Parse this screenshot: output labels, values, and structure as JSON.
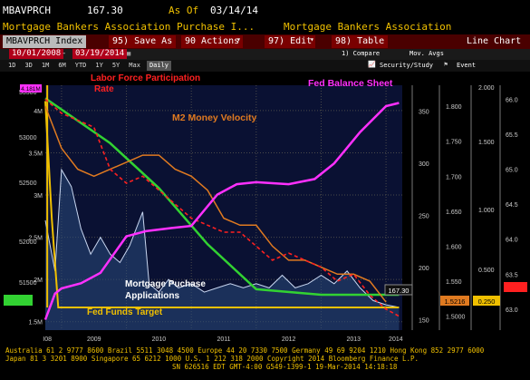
{
  "header": {
    "ticker": "MBAVPRCH",
    "price": "167.30",
    "as_of_label": "As Of",
    "as_of_date": "03/14/14",
    "subtitle_left": "Mortgage Bankers Association Purchase I...",
    "subtitle_right": "Mortgage Bankers Association"
  },
  "toolbar": {
    "index_field": "MBAVPRCH Index",
    "save": "95) Save As",
    "actions": "90 Actions",
    "edit": "97) Edit",
    "table": "98) Table",
    "view": "Line Chart"
  },
  "range": {
    "start": "10/01/2008",
    "end": "03/19/2014",
    "compare_label": "1) Compare",
    "mov_avgs_label": "Mov. Avgs",
    "security_study": "Security/Study",
    "event": "Event"
  },
  "period_tabs": [
    "1D",
    "3D",
    "1M",
    "6M",
    "YTD",
    "1Y",
    "5Y",
    "Max",
    "Daily"
  ],
  "selected_tab": "Daily",
  "colors": {
    "purchase_index": "#c8d6f0",
    "fed_funds": "#f0c000",
    "labor_force": "#ff2020",
    "m2_velocity": "#e07a20",
    "fed_balance": "#ff30ff",
    "unemployed_green": "#32d232"
  },
  "chart_data": {
    "type": "line",
    "title": "",
    "annotations": {
      "labor_force": "Labor Force Participation Rate",
      "m2": "M2 Money Velocity",
      "fed_balance": "Fed Balance Sheet",
      "mortgage": "Mortgage Puchase Applications",
      "fed_funds": "Fed Funds Target"
    },
    "x_ticks": [
      "2008",
      "2009",
      "2010",
      "2011",
      "2012",
      "2013",
      "2014"
    ],
    "x_tick_display": [
      "I08",
      "2009",
      "2010",
      "2011",
      "2012",
      "2013",
      "2014"
    ],
    "left_axis_ticks": [
      "53500",
      "53000",
      "52500",
      "52000",
      "51500"
    ],
    "axis2_ticks": [
      "4M",
      "3.5M",
      "3M",
      "2.5M",
      "2M",
      "1.5M"
    ],
    "axis2_top_label": "4.181M",
    "axis3_ticks": [
      "350",
      "300",
      "250",
      "200",
      "150"
    ],
    "axis4_ticks": [
      "1.800",
      "1.750",
      "1.700",
      "1.650",
      "1.600",
      "1.550",
      "1.5000"
    ],
    "axis5_ticks": [
      "2.000",
      "1.500",
      "1.000",
      "0.500"
    ],
    "axis6_ticks": [
      "66.0",
      "65.5",
      "65.0",
      "64.5",
      "64.0",
      "63.5",
      "63.0"
    ],
    "value_tags": {
      "left": "51.1",
      "purchase": "167.30",
      "velocity": "1.5216",
      "fed_funds": "0.250",
      "labor": "62.9"
    },
    "series": [
      {
        "name": "Mortgage Puchase Applications",
        "x": [
          2008.75,
          2008.9,
          2009.0,
          2009.15,
          2009.3,
          2009.45,
          2009.6,
          2009.75,
          2009.9,
          2010.05,
          2010.15,
          2010.25,
          2010.35,
          2010.5,
          2010.65,
          2010.8,
          2011.0,
          2011.2,
          2011.4,
          2011.6,
          2011.8,
          2012.0,
          2012.2,
          2012.4,
          2012.6,
          2012.8,
          2013.0,
          2013.2,
          2013.4,
          2013.6,
          2013.8,
          2014.0,
          2014.2
        ],
        "y": [
          2.7,
          2.1,
          3.3,
          3.1,
          2.6,
          2.3,
          2.5,
          2.3,
          2.2,
          2.4,
          2.6,
          2.8,
          1.95,
          1.85,
          2.0,
          1.9,
          1.95,
          1.85,
          1.9,
          1.95,
          1.9,
          1.95,
          1.9,
          2.05,
          1.9,
          1.95,
          2.05,
          1.95,
          2.1,
          1.9,
          1.75,
          1.7,
          1.67
        ]
      },
      {
        "name": "Fed Funds Target",
        "x": [
          2008.75,
          2008.85,
          2008.95,
          2014.2
        ],
        "y": [
          2.0,
          1.0,
          0.25,
          0.25
        ]
      },
      {
        "name": "Labor Force Participation Rate",
        "x": [
          2008.75,
          2009.0,
          2009.25,
          2009.5,
          2009.75,
          2010.0,
          2010.25,
          2010.5,
          2010.75,
          2011.0,
          2011.25,
          2011.5,
          2011.75,
          2012.0,
          2012.25,
          2012.5,
          2012.75,
          2013.0,
          2013.25,
          2013.5,
          2013.75,
          2014.0,
          2014.2
        ],
        "y": [
          66.0,
          65.8,
          65.7,
          65.6,
          65.0,
          64.8,
          64.9,
          64.7,
          64.5,
          64.3,
          64.2,
          64.1,
          64.1,
          63.9,
          63.7,
          63.8,
          63.7,
          63.6,
          63.4,
          63.5,
          63.2,
          63.0,
          62.9
        ]
      },
      {
        "name": "M2 Money Velocity",
        "x": [
          2008.75,
          2009.0,
          2009.25,
          2009.5,
          2009.75,
          2010.0,
          2010.25,
          2010.5,
          2010.75,
          2011.0,
          2011.25,
          2011.5,
          2011.75,
          2012.0,
          2012.25,
          2012.5,
          2012.75,
          2013.0,
          2013.25,
          2013.5,
          2013.75,
          2014.0
        ],
        "y": [
          1.8,
          1.74,
          1.71,
          1.7,
          1.71,
          1.72,
          1.73,
          1.73,
          1.71,
          1.7,
          1.68,
          1.64,
          1.63,
          1.63,
          1.6,
          1.58,
          1.58,
          1.57,
          1.56,
          1.56,
          1.55,
          1.52
        ]
      },
      {
        "name": "Fed Balance Sheet",
        "x": [
          2008.75,
          2008.9,
          2009.0,
          2009.3,
          2009.6,
          2010.0,
          2010.3,
          2010.7,
          2011.0,
          2011.4,
          2011.7,
          2012.0,
          2012.5,
          2012.9,
          2013.2,
          2013.6,
          2014.0,
          2014.2
        ],
        "y": [
          150,
          175,
          180,
          185,
          195,
          230,
          235,
          238,
          240,
          270,
          280,
          282,
          280,
          285,
          300,
          330,
          355,
          358
        ]
      },
      {
        "name": "",
        "x": [
          2008.75,
          2009.25,
          2009.75,
          2010.5,
          2011.25,
          2012.0,
          2013.0,
          2014.2
        ],
        "y": [
          2.0,
          1.8,
          1.6,
          1.2,
          0.7,
          0.3,
          0.25,
          0.25
        ]
      }
    ]
  },
  "footer": {
    "line1": "Australia 61 2 9777 8600 Brazil 5511 3048 4500 Europe 44 20 7330 7500 Germany 49 69 9204 1210 Hong Kong 852 2977 6000",
    "line2": "Japan 81 3 3201 8900          Singapore 65 6212 1000        U.S. 1 212 318 2000          Copyright 2014 Bloomberg Finance L.P.",
    "line3": "SN 626516 EDT  GMT-4:00 G549-1399-1 19-Mar-2014 14:18:18"
  }
}
